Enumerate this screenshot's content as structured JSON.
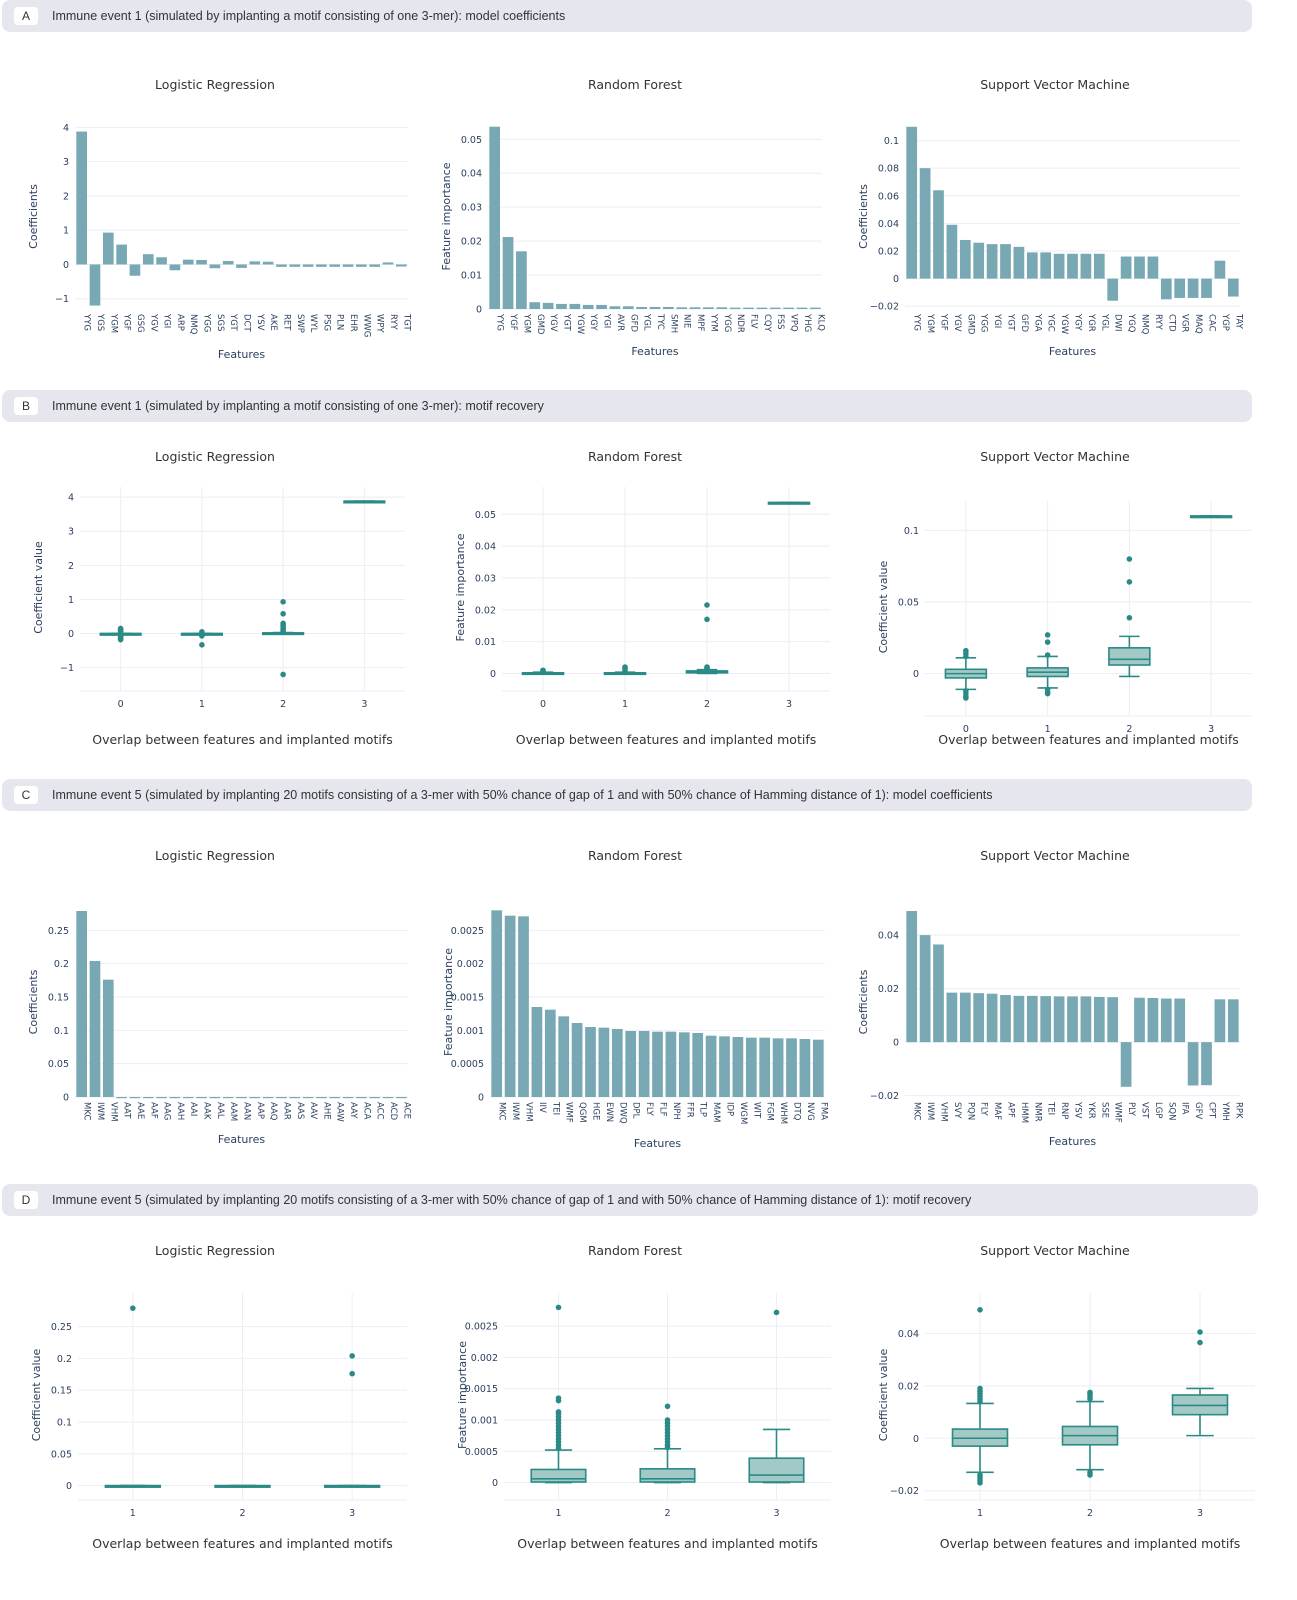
{
  "colors": {
    "bar": "#78a8b4",
    "box_line": "#2a8a86",
    "box_fill": "#a2c9c6",
    "point": "#2a8a86",
    "grid": "#ebeef5",
    "header_bg": "#e6e6ef",
    "text": "#2a3f5f"
  },
  "sections": [
    {
      "letter": "A",
      "title": "Immune event 1 (simulated by implanting a motif consisting of one 3-mer): model coefficients"
    },
    {
      "letter": "B",
      "title": "Immune event 1 (simulated by implanting a motif consisting of one 3-mer): motif recovery"
    },
    {
      "letter": "C",
      "title": "Immune event 5 (simulated by implanting 20 motifs consisting of a 3-mer with 50% chance of gap of 1 and with 50% chance of Hamming distance of 1): model coefficients"
    },
    {
      "letter": "D",
      "title": "Immune event 5 (simulated by implanting 20 motifs consisting of a 3-mer with 50% chance of gap of 1 and with 50% chance of Hamming distance of 1): motif recovery"
    }
  ],
  "chart_data": [
    {
      "id": "A-LR",
      "section": "A",
      "type": "bar",
      "title": "Logistic Regression",
      "xlabel": "Features",
      "ylabel": "Coefficients",
      "ylim": [
        -1.3,
        4.1
      ],
      "yticks": [
        -1,
        0,
        1,
        2,
        3,
        4
      ],
      "ytick_labels": [
        "−1",
        "0",
        "1",
        "2",
        "3",
        "4"
      ],
      "categories": [
        "YYG",
        "YGS",
        "YGM",
        "YGF",
        "GSG",
        "YGV",
        "YGI",
        "ARP",
        "NMQ",
        "YGG",
        "SGS",
        "YGT",
        "DCT",
        "YSV",
        "AKE",
        "RET",
        "SWP",
        "WYL",
        "PSG",
        "PLN",
        "EHR",
        "WWG",
        "WPY",
        "RYY",
        "TGT"
      ],
      "values": [
        3.88,
        -1.2,
        0.93,
        0.58,
        -0.33,
        0.3,
        0.21,
        -0.17,
        0.14,
        0.13,
        -0.11,
        0.1,
        -0.1,
        0.09,
        0.08,
        -0.07,
        -0.07,
        -0.07,
        -0.07,
        -0.07,
        -0.07,
        -0.07,
        -0.07,
        0.06,
        -0.06
      ],
      "grid": true
    },
    {
      "id": "A-RF",
      "section": "A",
      "type": "bar",
      "title": "Random Forest",
      "xlabel": "Features",
      "ylabel": "Feature importance",
      "ylim": [
        0,
        0.0545
      ],
      "yticks": [
        0,
        0.01,
        0.02,
        0.03,
        0.04,
        0.05
      ],
      "ytick_labels": [
        "0",
        "0.01",
        "0.02",
        "0.03",
        "0.04",
        "0.05"
      ],
      "categories": [
        "YYG",
        "YGF",
        "YGM",
        "GMD",
        "YGV",
        "YGT",
        "YGW",
        "YGY",
        "YGI",
        "AVR",
        "GFD",
        "YGL",
        "TYC",
        "SMH",
        "NIE",
        "MPF",
        "YYM",
        "YGG",
        "NDR",
        "FLV",
        "CQY",
        "FSS",
        "VPQ",
        "YHG",
        "KLQ"
      ],
      "values": [
        0.0537,
        0.0212,
        0.017,
        0.002,
        0.0018,
        0.0015,
        0.0015,
        0.0012,
        0.0012,
        0.0008,
        0.0008,
        0.0006,
        0.0006,
        0.0006,
        0.0005,
        0.0005,
        0.0005,
        0.0005,
        0.0004,
        0.0004,
        0.0004,
        0.0004,
        0.0004,
        0.0004,
        0.0004
      ],
      "grid": true
    },
    {
      "id": "A-SVM",
      "section": "A",
      "type": "bar",
      "title": "Support Vector Machine",
      "xlabel": "Features",
      "ylabel": "Coefficients",
      "ylim": [
        -0.022,
        0.112
      ],
      "yticks": [
        -0.02,
        0,
        0.02,
        0.04,
        0.06,
        0.08,
        0.1
      ],
      "ytick_labels": [
        "−0.02",
        "0",
        "0.02",
        "0.04",
        "0.06",
        "0.08",
        "0.1"
      ],
      "categories": [
        "YYG",
        "YGM",
        "YGF",
        "YGV",
        "GMD",
        "YGG",
        "YGI",
        "YGT",
        "GFD",
        "YGA",
        "YGC",
        "YGW",
        "YGY",
        "YGR",
        "YGL",
        "DWI",
        "YGQ",
        "NMQ",
        "RYY",
        "CTD",
        "VGR",
        "MAQ",
        "CAC",
        "YGP",
        "TAY"
      ],
      "values": [
        0.11,
        0.08,
        0.064,
        0.039,
        0.028,
        0.026,
        0.025,
        0.025,
        0.023,
        0.019,
        0.019,
        0.018,
        0.018,
        0.018,
        0.018,
        -0.016,
        0.016,
        0.016,
        0.016,
        -0.015,
        -0.014,
        -0.014,
        -0.014,
        0.013,
        -0.013
      ],
      "grid": true
    },
    {
      "id": "B-LR",
      "section": "B",
      "type": "box",
      "title": "Logistic Regression",
      "xlabel": "Overlap between features and implanted motifs",
      "ylabel": "Coefficient value",
      "ylim": [
        -1.45,
        4.15
      ],
      "yticks": [
        -1,
        0,
        1,
        2,
        3,
        4
      ],
      "ytick_labels": [
        "−1",
        "0",
        "1",
        "2",
        "3",
        "4"
      ],
      "categories": [
        "0",
        "1",
        "2",
        "3"
      ],
      "boxes": [
        {
          "q1": 0,
          "median": 0,
          "q3": 0,
          "lower": 0,
          "upper": 0,
          "outliers": [
            0.15,
            0.12,
            0.1,
            0.08,
            0.05,
            -0.05,
            -0.08,
            -0.12,
            -0.15,
            -0.18
          ]
        },
        {
          "q1": 0,
          "median": 0,
          "q3": 0,
          "lower": 0,
          "upper": 0,
          "outliers": [
            0.05,
            -0.03,
            -0.07,
            -0.33
          ]
        },
        {
          "q1": 0,
          "median": 0.01,
          "q3": 0.02,
          "lower": 0,
          "upper": 0.03,
          "outliers": [
            0.93,
            0.58,
            0.3,
            0.25,
            0.2,
            0.14,
            0.1,
            0.06,
            -1.2
          ]
        },
        {
          "q1": 3.88,
          "median": 3.88,
          "q3": 3.88,
          "lower": 3.88,
          "upper": 3.88,
          "outliers": []
        }
      ],
      "grid": true
    },
    {
      "id": "B-RF",
      "section": "B",
      "type": "box",
      "title": "Random Forest",
      "xlabel": "Overlap between features and implanted motifs",
      "ylabel": "Feature importance",
      "ylim": [
        -0.003,
        0.057
      ],
      "yticks": [
        0,
        0.01,
        0.02,
        0.03,
        0.04,
        0.05
      ],
      "ytick_labels": [
        "0",
        "0.01",
        "0.02",
        "0.03",
        "0.04",
        "0.05"
      ],
      "categories": [
        "0",
        "1",
        "2",
        "3"
      ],
      "boxes": [
        {
          "q1": 0,
          "median": 0.0001,
          "q3": 0.0002,
          "lower": 0,
          "upper": 0.0004,
          "outliers": [
            0.0006,
            0.0008,
            0.001
          ]
        },
        {
          "q1": 0,
          "median": 0.0001,
          "q3": 0.0002,
          "lower": 0,
          "upper": 0.0004,
          "outliers": [
            0.0008,
            0.0015,
            0.002
          ]
        },
        {
          "q1": 0.0002,
          "median": 0.0005,
          "q3": 0.0008,
          "lower": 0,
          "upper": 0.0012,
          "outliers": [
            0.0015,
            0.0018,
            0.002,
            0.017,
            0.0215
          ]
        },
        {
          "q1": 0.0537,
          "median": 0.0537,
          "q3": 0.0537,
          "lower": 0.0537,
          "upper": 0.0537,
          "outliers": []
        }
      ],
      "grid": true
    },
    {
      "id": "B-SVM",
      "section": "B",
      "type": "box",
      "title": "Support Vector Machine",
      "xlabel": "Overlap between features and implanted motifs",
      "ylabel": "Coefficient value",
      "ylim": [
        -0.024,
        0.117
      ],
      "yticks": [
        0,
        0.05,
        0.1
      ],
      "ytick_labels": [
        "0",
        "0.05",
        "0.1"
      ],
      "categories": [
        "0",
        "1",
        "2",
        "3"
      ],
      "boxes": [
        {
          "q1": -0.003,
          "median": 0,
          "q3": 0.003,
          "lower": -0.011,
          "upper": 0.011,
          "outliers": [
            0.012,
            0.014,
            0.016,
            -0.012,
            -0.014,
            -0.016,
            -0.017
          ]
        },
        {
          "q1": -0.002,
          "median": 0.001,
          "q3": 0.004,
          "lower": -0.01,
          "upper": 0.012,
          "outliers": [
            0.013,
            0.022,
            0.027,
            -0.011,
            -0.013,
            -0.014
          ]
        },
        {
          "q1": 0.006,
          "median": 0.01,
          "q3": 0.018,
          "lower": -0.002,
          "upper": 0.026,
          "outliers": [
            0.039,
            0.064,
            0.08
          ]
        },
        {
          "q1": 0.11,
          "median": 0.11,
          "q3": 0.11,
          "lower": 0.11,
          "upper": 0.11,
          "outliers": []
        }
      ],
      "grid": true
    },
    {
      "id": "C-LR",
      "section": "C",
      "type": "bar",
      "title": "Logistic Regression",
      "xlabel": "Features",
      "ylabel": "Coefficients",
      "ylim": [
        0,
        0.285
      ],
      "yticks": [
        0,
        0.05,
        0.1,
        0.15,
        0.2,
        0.25
      ],
      "ytick_labels": [
        "0",
        "0.05",
        "0.1",
        "0.15",
        "0.2",
        "0.25"
      ],
      "categories": [
        "MKC",
        "IWM",
        "VHM",
        "AAT",
        "AAE",
        "AAF",
        "AAG",
        "AAH",
        "AAI",
        "AAK",
        "AAL",
        "AAM",
        "AAN",
        "AAP",
        "AAQ",
        "AAR",
        "AAS",
        "AAV",
        "AHE",
        "AAW",
        "AAY",
        "ACA",
        "ACC",
        "ACD",
        "ACE"
      ],
      "values": [
        0.279,
        0.204,
        0.176,
        0,
        0,
        0,
        0,
        0,
        0,
        0,
        0,
        0,
        0,
        0,
        0,
        0,
        0,
        0,
        0,
        0,
        0,
        0,
        0,
        0,
        0
      ],
      "grid": true
    },
    {
      "id": "C-RF",
      "section": "C",
      "type": "bar",
      "title": "Random Forest",
      "xlabel": "Features",
      "ylabel": "Feature importance",
      "ylim": [
        0,
        0.00285
      ],
      "yticks": [
        0,
        0.0005,
        0.001,
        0.0015,
        0.002,
        0.0025
      ],
      "ytick_labels": [
        "0",
        "0.0005",
        "0.001",
        "0.0015",
        "0.002",
        "0.0025"
      ],
      "categories": [
        "MKC",
        "IWM",
        "VHM",
        "IIV",
        "TEI",
        "WMF",
        "QGM",
        "HGE",
        "EWN",
        "DWQ",
        "DPL",
        "FLY",
        "FLF",
        "NPH",
        "FFR",
        "TLP",
        "MAM",
        "IDP",
        "WGM",
        "WIT",
        "FGM",
        "WHM",
        "DTQ",
        "NVG",
        "FMA"
      ],
      "values": [
        0.0028,
        0.00272,
        0.00271,
        0.00135,
        0.00131,
        0.00121,
        0.00111,
        0.00105,
        0.00104,
        0.00102,
        0.00099,
        0.00099,
        0.00098,
        0.00098,
        0.00097,
        0.00096,
        0.00092,
        0.00091,
        0.0009,
        0.00089,
        0.00089,
        0.00088,
        0.00088,
        0.00087,
        0.00086
      ],
      "grid": true
    },
    {
      "id": "C-SVM",
      "section": "C",
      "type": "bar",
      "title": "Support Vector Machine",
      "xlabel": "Features",
      "ylabel": "Coefficients",
      "ylim": [
        -0.0205,
        0.0505
      ],
      "yticks": [
        -0.02,
        0,
        0.02,
        0.04
      ],
      "ytick_labels": [
        "−0.02",
        "0",
        "0.02",
        "0.04"
      ],
      "categories": [
        "MKC",
        "IWM",
        "VHM",
        "SVY",
        "PQN",
        "FLY",
        "MAF",
        "APF",
        "HMM",
        "NMR",
        "TEI",
        "RNP",
        "YSV",
        "YKR",
        "SSE",
        "WMF",
        "PLY",
        "VST",
        "LGP",
        "SQN",
        "IFA",
        "GFV",
        "CPT",
        "YMH",
        "RPK"
      ],
      "values": [
        0.049,
        0.04,
        0.0365,
        0.0185,
        0.0185,
        0.0183,
        0.0181,
        0.0176,
        0.0173,
        0.0173,
        0.0172,
        0.0171,
        0.0171,
        0.0171,
        0.0169,
        0.0168,
        -0.0167,
        0.0166,
        0.0165,
        0.0163,
        0.0163,
        -0.0162,
        -0.0161,
        0.016,
        0.016
      ],
      "grid": true
    },
    {
      "id": "D-LR",
      "section": "D",
      "type": "box",
      "title": "Logistic Regression",
      "xlabel": "Overlap between features and implanted motifs",
      "ylabel": "Coefficient value",
      "ylim": [
        -0.01,
        0.295
      ],
      "yticks": [
        0,
        0.05,
        0.1,
        0.15,
        0.2,
        0.25
      ],
      "ytick_labels": [
        "0",
        "0.05",
        "0.1",
        "0.15",
        "0.2",
        "0.25"
      ],
      "categories": [
        "1",
        "2",
        "3"
      ],
      "boxes": [
        {
          "q1": 0,
          "median": 0,
          "q3": 0,
          "lower": 0,
          "upper": 0,
          "outliers": [
            0.279
          ]
        },
        {
          "q1": 0,
          "median": 0,
          "q3": 0,
          "lower": 0,
          "upper": 0,
          "outliers": []
        },
        {
          "q1": 0,
          "median": 0,
          "q3": 0,
          "lower": 0,
          "upper": 0,
          "outliers": [
            0.204,
            0.176
          ]
        }
      ],
      "grid": true
    },
    {
      "id": "D-RF",
      "section": "D",
      "type": "box",
      "title": "Random Forest",
      "xlabel": "Overlap between features and implanted motifs",
      "ylabel": "Feature importance",
      "ylim": [
        -0.00015,
        0.00295
      ],
      "yticks": [
        0,
        0.0005,
        0.001,
        0.0015,
        0.002,
        0.0025
      ],
      "ytick_labels": [
        "0",
        "0.0005",
        "0.001",
        "0.0015",
        "0.002",
        "0.0025"
      ],
      "categories": [
        "1",
        "2",
        "3"
      ],
      "boxes": [
        {
          "q1": 1e-05,
          "median": 6e-05,
          "q3": 0.00021,
          "lower": 0,
          "upper": 0.00052,
          "outliers": [
            0.00055,
            0.0006,
            0.00065,
            0.0007,
            0.00075,
            0.0008,
            0.00085,
            0.0009,
            0.00095,
            0.001,
            0.00105,
            0.0011,
            0.00113,
            0.00131,
            0.00135,
            0.0028
          ]
        },
        {
          "q1": 1e-05,
          "median": 6e-05,
          "q3": 0.00022,
          "lower": 0,
          "upper": 0.00054,
          "outliers": [
            0.00056,
            0.0006,
            0.00065,
            0.0007,
            0.00075,
            0.0008,
            0.00085,
            0.0009,
            0.00095,
            0.001,
            0.00122
          ]
        },
        {
          "q1": 1e-05,
          "median": 0.00012,
          "q3": 0.00039,
          "lower": 0,
          "upper": 0.00085,
          "outliers": [
            0.00272
          ]
        }
      ],
      "grid": true
    },
    {
      "id": "D-SVM",
      "section": "D",
      "type": "box",
      "title": "Support Vector Machine",
      "xlabel": "Overlap between features and implanted motifs",
      "ylabel": "Coefficient value",
      "ylim": [
        -0.0205,
        0.0535
      ],
      "yticks": [
        -0.02,
        0,
        0.02,
        0.04
      ],
      "ytick_labels": [
        "−0.02",
        "0",
        "0.02",
        "0.04"
      ],
      "categories": [
        "1",
        "2",
        "3"
      ],
      "boxes": [
        {
          "q1": -0.003,
          "median": 0,
          "q3": 0.0035,
          "lower": -0.013,
          "upper": 0.0133,
          "outliers": [
            0.014,
            0.015,
            0.016,
            0.017,
            0.018,
            0.019,
            -0.014,
            -0.015,
            -0.016,
            -0.017,
            0.049
          ]
        },
        {
          "q1": -0.0025,
          "median": 0.001,
          "q3": 0.0045,
          "lower": -0.012,
          "upper": 0.014,
          "outliers": [
            0.015,
            0.016,
            0.017,
            0.0175,
            -0.013,
            -0.014
          ]
        },
        {
          "q1": 0.009,
          "median": 0.0125,
          "q3": 0.0165,
          "lower": 0.001,
          "upper": 0.019,
          "outliers": [
            0.0405,
            0.0365
          ]
        }
      ],
      "grid": true
    }
  ]
}
